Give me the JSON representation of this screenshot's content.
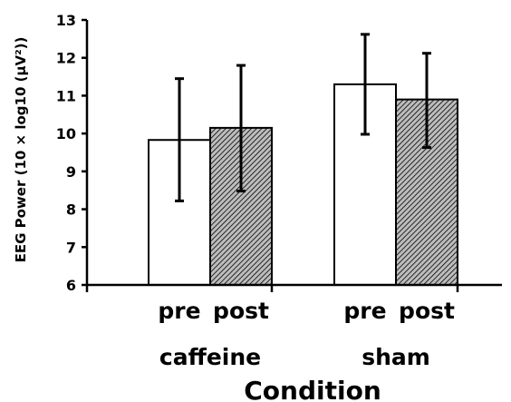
{
  "chart_data": {
    "type": "bar",
    "title": "",
    "xlabel": "Condition",
    "ylabel": "EEG Power (10 × log10 (μV²))",
    "ylim": [
      6,
      13
    ],
    "yticks": [
      6,
      7,
      8,
      9,
      10,
      11,
      12,
      13
    ],
    "grid": false,
    "legend": "none",
    "groups": [
      {
        "name": "caffeine",
        "bars": [
          {
            "label": "pre",
            "value": 9.83,
            "err_low": 8.22,
            "err_high": 11.45,
            "fill": "white"
          },
          {
            "label": "post",
            "value": 10.15,
            "err_low": 8.48,
            "err_high": 11.8,
            "fill": "hatched"
          }
        ]
      },
      {
        "name": "sham",
        "bars": [
          {
            "label": "pre",
            "value": 11.3,
            "err_low": 9.98,
            "err_high": 12.62,
            "fill": "white"
          },
          {
            "label": "post",
            "value": 10.9,
            "err_low": 9.63,
            "err_high": 12.12,
            "fill": "hatched"
          }
        ]
      }
    ]
  },
  "colors": {
    "axis": "#000000",
    "bar_outline": "#000000",
    "pre_fill": "#ffffff",
    "post_fill": "#bdbdbd",
    "hatch_line": "#000000"
  }
}
